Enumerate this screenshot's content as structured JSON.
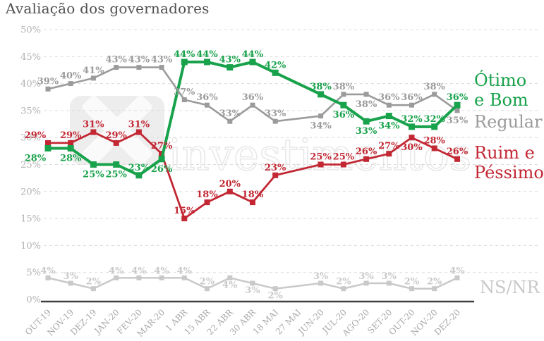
{
  "title": "Avaliação dos governadores",
  "watermark": {
    "logo": "X",
    "text": "investimentos"
  },
  "legend": {
    "otimo": {
      "line1": "Ótimo",
      "line2": "e Bom"
    },
    "regular": {
      "line1": "Regular"
    },
    "ruim": {
      "line1": "Ruim e",
      "line2": "Péssimo"
    },
    "nsnr": {
      "line1": "NS/NR"
    }
  },
  "chart_data": {
    "type": "line",
    "title": "Avaliação dos governadores",
    "categories": [
      "OUT-19",
      "NOV-19",
      "DEZ-19",
      "JAN-20",
      "FEV-20",
      "MAR-20",
      "1 ABR",
      "15 ABR",
      "22 ABR",
      "30 ABR",
      "18 MAI",
      "27 MAI",
      "JUN-20",
      "JUL-20",
      "AGO-20",
      "SET-20",
      "OUT-20",
      "NOV-20",
      "DEZ-20"
    ],
    "y_tick_labels": [
      "0%",
      "5%",
      "10%",
      "15%",
      "20%",
      "25%",
      "30%",
      "35%",
      "40%",
      "45%",
      "50%"
    ],
    "ylim": [
      0,
      50
    ],
    "grid": true,
    "legend_position": "right",
    "value_suffix": "%",
    "series": [
      {
        "name": "Ótimo e Bom",
        "color": "#18a24b",
        "values": [
          28,
          28,
          25,
          25,
          23,
          26,
          44,
          44,
          43,
          44,
          42,
          null,
          38,
          36,
          33,
          34,
          32,
          32,
          36
        ],
        "label_sides": [
          "b",
          "b",
          "b",
          "b",
          "a",
          "b",
          "a",
          "a",
          "a",
          "a",
          "a",
          null,
          "a",
          "b",
          "b",
          "b",
          "a",
          "a",
          "a"
        ]
      },
      {
        "name": "Regular",
        "color": "#9b9b9b",
        "values": [
          39,
          40,
          41,
          43,
          43,
          43,
          37,
          36,
          33,
          36,
          33,
          null,
          34,
          38,
          38,
          36,
          36,
          38,
          35
        ],
        "label_sides": [
          "a",
          "a",
          "a",
          "a",
          "a",
          "a",
          "a",
          "a",
          "a",
          "a",
          "a",
          null,
          "b",
          "a",
          "b",
          "a",
          "a",
          "a",
          "b"
        ]
      },
      {
        "name": "Ruim e Péssimo",
        "color": "#c22733",
        "values": [
          29,
          29,
          31,
          29,
          31,
          27,
          15,
          18,
          20,
          18,
          23,
          null,
          25,
          25,
          26,
          27,
          30,
          28,
          26
        ],
        "label_sides": [
          "a",
          "a",
          "a",
          "a",
          "a",
          "a",
          "a",
          "a",
          "a",
          "a",
          "a",
          null,
          "a",
          "a",
          "a",
          "a",
          "b",
          "a",
          "a"
        ]
      },
      {
        "name": "NS/NR",
        "color": "#c9c9c9",
        "values": [
          4,
          3,
          2,
          4,
          4,
          4,
          4,
          2,
          4,
          3,
          2,
          null,
          3,
          2,
          3,
          3,
          2,
          2,
          4
        ],
        "label_sides": [
          "a",
          "a",
          "a",
          "a",
          "a",
          "a",
          "a",
          "a",
          "b",
          "b",
          "b",
          null,
          "a",
          "a",
          "a",
          "a",
          "a",
          "a",
          "a"
        ]
      }
    ]
  }
}
